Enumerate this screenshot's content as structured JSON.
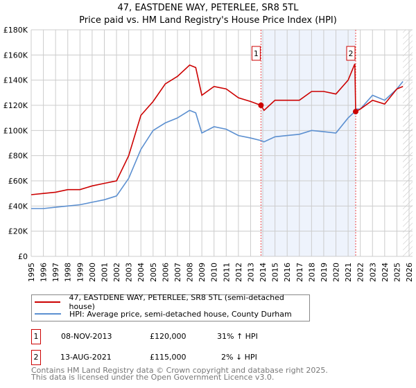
{
  "title": "47, EASTDENE WAY, PETERLEE, SR8 5TL",
  "subtitle": "Price paid vs. HM Land Registry's House Price Index (HPI)",
  "chart_data": {
    "type": "line",
    "title": "47, EASTDENE WAY, PETERLEE, SR8 5TL",
    "ylim": [
      0,
      180000
    ],
    "xlim": [
      1995,
      2026
    ],
    "yticks": [
      0,
      20000,
      40000,
      60000,
      80000,
      100000,
      120000,
      140000,
      160000,
      180000
    ],
    "ytick_labels": [
      "£0",
      "£20K",
      "£40K",
      "£60K",
      "£80K",
      "£100K",
      "£120K",
      "£140K",
      "£160K",
      "£180K"
    ],
    "xticks": [
      "1995",
      "1996",
      "1997",
      "1998",
      "1999",
      "2000",
      "2001",
      "2002",
      "2003",
      "2004",
      "2005",
      "2006",
      "2007",
      "2008",
      "2009",
      "2010",
      "2011",
      "2012",
      "2013",
      "2014",
      "2015",
      "2016",
      "2017",
      "2018",
      "2019",
      "2020",
      "2021",
      "2022",
      "2023",
      "2024",
      "2025",
      "2026"
    ],
    "grid": true,
    "shaded_range": [
      2013.85,
      2021.62
    ],
    "hatched_from": 2025.5,
    "series": [
      {
        "name": "47, EASTDENE WAY, PETERLEE, SR8 5TL (semi-detached house)",
        "color": "#cc0000",
        "x": [
          1995,
          1996,
          1997,
          1998,
          1999,
          2000,
          2001,
          2002,
          2003,
          2004,
          2005,
          2006,
          2007,
          2008,
          2008.5,
          2009,
          2010,
          2011,
          2012,
          2013,
          2013.85,
          2014.1,
          2015,
          2016,
          2017,
          2018,
          2019,
          2020,
          2021,
          2021.55,
          2021.62,
          2022,
          2023,
          2024,
          2025,
          2025.5
        ],
        "y": [
          49000,
          50000,
          51000,
          53000,
          53000,
          56000,
          58000,
          60000,
          80000,
          112000,
          123000,
          137000,
          143000,
          152000,
          150000,
          128000,
          135000,
          133000,
          126000,
          123000,
          120000,
          116000,
          124000,
          124000,
          124000,
          131000,
          131000,
          129000,
          140000,
          153000,
          115000,
          117000,
          124000,
          121000,
          133000,
          135000
        ]
      },
      {
        "name": "HPI: Average price, semi-detached house, County Durham",
        "color": "#5b8fd0",
        "x": [
          1995,
          1996,
          1997,
          1998,
          1999,
          2000,
          2001,
          2002,
          2003,
          2004,
          2005,
          2006,
          2007,
          2008,
          2008.5,
          2009,
          2010,
          2011,
          2012,
          2013,
          2013.85,
          2014.1,
          2015,
          2016,
          2017,
          2018,
          2019,
          2020,
          2021,
          2021.55,
          2021.62,
          2022,
          2023,
          2024,
          2025,
          2025.5
        ],
        "y": [
          38000,
          38000,
          39000,
          40000,
          41000,
          43000,
          45000,
          48000,
          62000,
          85000,
          100000,
          106000,
          110000,
          116000,
          114000,
          98000,
          103000,
          101000,
          96000,
          94000,
          92000,
          91000,
          95000,
          96000,
          97000,
          100000,
          99000,
          98000,
          110000,
          115000,
          117000,
          117000,
          128000,
          124000,
          133000,
          139000
        ]
      }
    ],
    "markers": [
      {
        "label": "1",
        "x": 2013.85,
        "y": 120000
      },
      {
        "label": "2",
        "x": 2021.62,
        "y": 115000
      }
    ]
  },
  "legend": {
    "item1": "47, EASTDENE WAY, PETERLEE, SR8 5TL (semi-detached house)",
    "item2": "HPI: Average price, semi-detached house, County Durham"
  },
  "transactions": [
    {
      "num": "1",
      "date": "08-NOV-2013",
      "price": "£120,000",
      "hpi": "31% ↑ HPI"
    },
    {
      "num": "2",
      "date": "13-AUG-2021",
      "price": "£115,000",
      "hpi": "2% ↓ HPI"
    }
  ],
  "footer": {
    "line1": "Contains HM Land Registry data © Crown copyright and database right 2025.",
    "line2": "This data is licensed under the Open Government Licence v3.0."
  }
}
